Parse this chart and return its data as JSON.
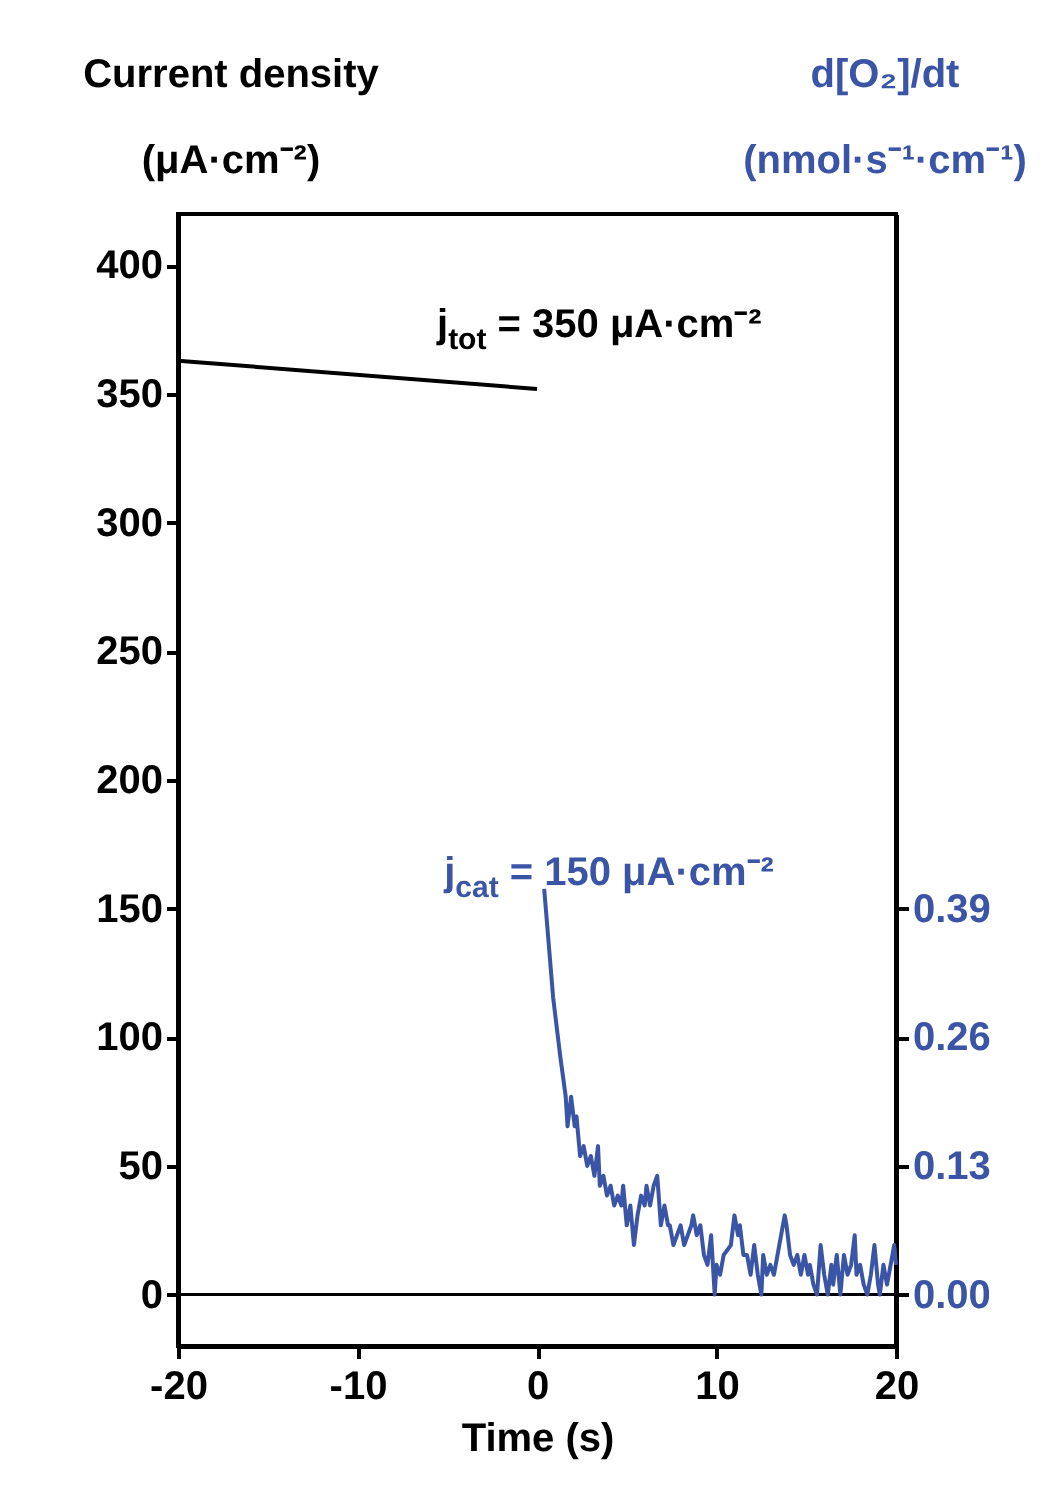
{
  "chart_data": {
    "type": "line",
    "xlabel": "Time (s)",
    "ylabel": "Current density\n(μA·cm⁻²)",
    "y2label": "d[O₂]/dt\n(nmol·s⁻¹·cm⁻¹)",
    "xlim": [
      -20,
      20
    ],
    "xticks": [
      -20,
      -10,
      0,
      10,
      20
    ],
    "ylim": [
      -20,
      420
    ],
    "yticks": [
      0,
      50,
      100,
      150,
      200,
      250,
      300,
      350,
      400
    ],
    "y2lim": [
      -0.052,
      1.092
    ],
    "y2ticks": [
      {
        "value": 0,
        "label": "0.00"
      },
      0.13,
      0.26,
      0.39
    ],
    "series": [
      {
        "color": "#000000",
        "x": [
          -20,
          0
        ],
        "values": [
          363,
          352
        ]
      },
      {
        "color": "#3a55a5",
        "axis": "y2",
        "x": [
          0.4,
          0.9,
          1.3,
          1.6,
          1.7,
          1.9,
          2.1,
          2.2,
          2.4,
          2.6,
          2.8,
          3.0,
          3.2,
          3.4,
          3.5,
          3.7,
          3.9,
          4.1,
          4.3,
          4.5,
          4.7,
          4.8,
          5.0,
          5.2,
          5.4,
          5.6,
          5.8,
          6.0,
          6.1,
          6.3,
          6.5,
          6.7,
          6.9,
          7.1,
          7.3,
          7.4,
          7.6,
          7.8,
          8.0,
          8.2,
          8.6,
          8.7,
          8.9,
          9.1,
          9.3,
          9.5,
          9.7,
          9.9,
          10.0,
          10.2,
          10.4,
          10.8,
          11.0,
          11.2,
          11.3,
          11.5,
          11.7,
          11.9,
          12.1,
          12.3,
          12.5,
          12.6,
          12.8,
          13.0,
          13.2,
          13.4,
          13.6,
          13.8,
          13.9,
          14.1,
          14.3,
          14.5,
          14.7,
          14.9,
          15.1,
          15.2,
          15.4,
          15.6,
          15.8,
          16.0,
          16.2,
          16.4,
          16.5,
          16.7,
          16.9,
          17.1,
          17.3,
          17.5,
          17.7,
          17.8,
          18.0,
          18.2,
          18.4,
          18.6,
          18.8,
          19.0,
          19.1,
          19.3,
          19.5,
          19.9,
          20.0
        ],
        "values": [
          0.41,
          0.3,
          0.24,
          0.2,
          0.17,
          0.2,
          0.17,
          0.18,
          0.14,
          0.15,
          0.13,
          0.14,
          0.12,
          0.15,
          0.11,
          0.12,
          0.1,
          0.11,
          0.09,
          0.1,
          0.09,
          0.11,
          0.07,
          0.09,
          0.05,
          0.08,
          0.1,
          0.09,
          0.11,
          0.09,
          0.11,
          0.12,
          0.07,
          0.09,
          0.07,
          0.07,
          0.05,
          0.06,
          0.07,
          0.05,
          0.07,
          0.08,
          0.06,
          0.07,
          0.04,
          0.03,
          0.06,
          0.0,
          0.03,
          0.02,
          0.04,
          0.05,
          0.08,
          0.06,
          0.07,
          0.04,
          0.04,
          0.02,
          0.05,
          0.02,
          0.0,
          0.04,
          0.02,
          0.03,
          0.02,
          0.04,
          0.06,
          0.08,
          0.07,
          0.04,
          0.03,
          0.04,
          0.02,
          0.04,
          0.02,
          0.03,
          0.01,
          0.0,
          0.05,
          0.02,
          0.0,
          0.03,
          0.01,
          0.04,
          0.0,
          0.04,
          0.02,
          0.03,
          0.06,
          0.02,
          0.03,
          0.01,
          0.0,
          0.02,
          0.05,
          0.01,
          0.0,
          0.03,
          0.01,
          0.05,
          0.03
        ]
      }
    ],
    "ref_lines": [
      {
        "axis": "y",
        "value": 0,
        "color": "#000000"
      }
    ],
    "annotations": [
      "j$_{tot}$ = 350 μA·cm⁻²",
      "j$_{cat}$ = 150 μA·cm⁻²"
    ]
  }
}
